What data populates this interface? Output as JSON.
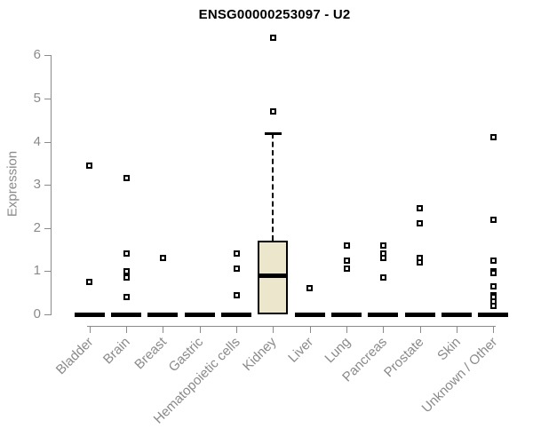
{
  "title": "ENSG00000253097 - U2",
  "axes": {
    "y_label": "Expression",
    "y_ticks": [
      0,
      1,
      2,
      3,
      4,
      5,
      6
    ],
    "x_categories": [
      "Bladder",
      "Brain",
      "Breast",
      "Gastric",
      "Hematopoietic cells",
      "Kidney",
      "Liver",
      "Lung",
      "Pancreas",
      "Prostate",
      "Skin",
      "Unknown / Other"
    ]
  },
  "colors": {
    "box_fill": "#ece6cd",
    "box_stroke": "#000000",
    "axis_gray": "#8b8b8b",
    "title_color": "#000000",
    "background": "#ffffff"
  },
  "chart_data": {
    "type": "boxplot",
    "title": "ENSG00000253097 - U2",
    "xlabel": "",
    "ylabel": "Expression",
    "ylim": [
      0,
      6.5
    ],
    "grid": false,
    "legend": false,
    "y_ticks": [
      0,
      1,
      2,
      3,
      4,
      5,
      6
    ],
    "categories": [
      "Bladder",
      "Brain",
      "Breast",
      "Gastric",
      "Hematopoietic cells",
      "Kidney",
      "Liver",
      "Lung",
      "Pancreas",
      "Prostate",
      "Skin",
      "Unknown / Other"
    ],
    "series": [
      {
        "category": "Bladder",
        "whisker_low": 0,
        "q1": 0,
        "median": 0,
        "q3": 0,
        "whisker_high": 0,
        "outliers": [
          3.45,
          0.75
        ]
      },
      {
        "category": "Brain",
        "whisker_low": 0,
        "q1": 0,
        "median": 0,
        "q3": 0,
        "whisker_high": 0,
        "outliers": [
          3.15,
          1.4,
          1.0,
          0.85,
          0.4
        ]
      },
      {
        "category": "Breast",
        "whisker_low": 0,
        "q1": 0,
        "median": 0,
        "q3": 0,
        "whisker_high": 0,
        "outliers": [
          1.3
        ]
      },
      {
        "category": "Gastric",
        "whisker_low": 0,
        "q1": 0,
        "median": 0,
        "q3": 0,
        "whisker_high": 0,
        "outliers": []
      },
      {
        "category": "Hematopoietic cells",
        "whisker_low": 0,
        "q1": 0,
        "median": 0,
        "q3": 0,
        "whisker_high": 0,
        "outliers": [
          1.4,
          1.05,
          0.45
        ]
      },
      {
        "category": "Kidney",
        "whisker_low": 0,
        "q1": 0,
        "median": 0.9,
        "q3": 1.7,
        "whisker_high": 4.2,
        "outliers": [
          6.4,
          4.7
        ]
      },
      {
        "category": "Liver",
        "whisker_low": 0,
        "q1": 0,
        "median": 0,
        "q3": 0,
        "whisker_high": 0,
        "outliers": [
          0.6
        ]
      },
      {
        "category": "Lung",
        "whisker_low": 0,
        "q1": 0,
        "median": 0,
        "q3": 0,
        "whisker_high": 0,
        "outliers": [
          1.6,
          1.25,
          1.05
        ]
      },
      {
        "category": "Pancreas",
        "whisker_low": 0,
        "q1": 0,
        "median": 0,
        "q3": 0,
        "whisker_high": 0,
        "outliers": [
          1.6,
          1.4,
          1.3,
          0.85
        ]
      },
      {
        "category": "Prostate",
        "whisker_low": 0,
        "q1": 0,
        "median": 0,
        "q3": 0,
        "whisker_high": 0,
        "outliers": [
          2.45,
          2.1,
          1.3,
          1.2
        ]
      },
      {
        "category": "Skin",
        "whisker_low": 0,
        "q1": 0,
        "median": 0,
        "q3": 0,
        "whisker_high": 0,
        "outliers": []
      },
      {
        "category": "Unknown / Other",
        "whisker_low": 0,
        "q1": 0,
        "median": 0,
        "q3": 0,
        "whisker_high": 0,
        "outliers": [
          4.1,
          2.2,
          1.25,
          1.0,
          0.95,
          0.65,
          0.45,
          0.4,
          0.3,
          0.2
        ]
      }
    ]
  }
}
